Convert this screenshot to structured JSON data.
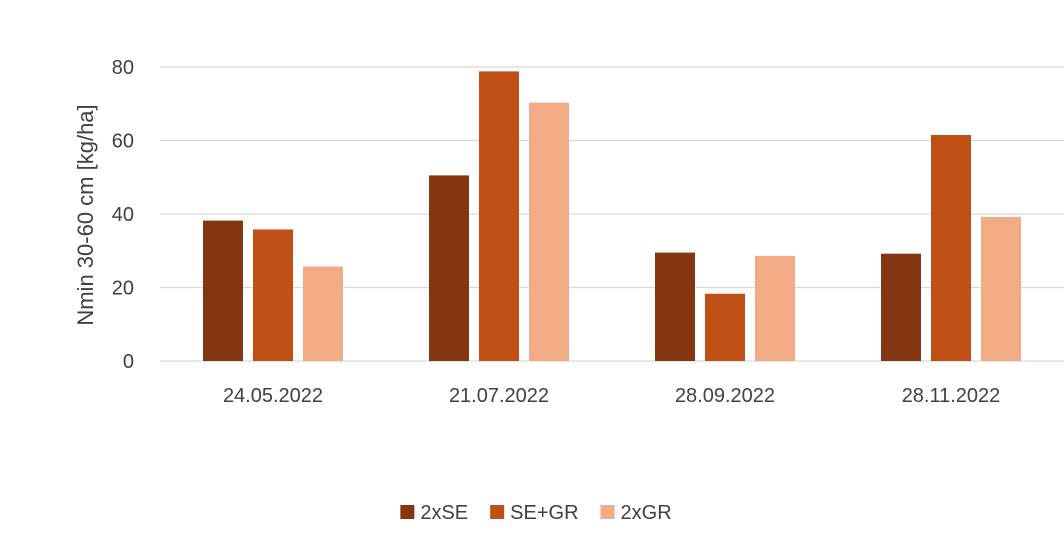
{
  "chart_data": {
    "type": "bar",
    "title": "",
    "xlabel": "",
    "ylabel": "Nmin 30-60 cm [kg/ha]",
    "categories": [
      "24.05.2022",
      "21.07.2022",
      "28.09.2022",
      "28.11.2022"
    ],
    "series": [
      {
        "name": "2xSE",
        "values": [
          38.2,
          50.5,
          29.5,
          29.2
        ],
        "color": "#843511"
      },
      {
        "name": "SE+GR",
        "values": [
          35.8,
          78.8,
          18.3,
          61.5
        ],
        "color": "#C05016"
      },
      {
        "name": "2xGR",
        "values": [
          25.7,
          70.3,
          28.6,
          39.2
        ],
        "color": "#F2AB85"
      }
    ],
    "ylim": [
      0,
      80
    ],
    "yticks": [
      0,
      20,
      40,
      60,
      80
    ],
    "grid": true,
    "legend_position": "bottom"
  }
}
